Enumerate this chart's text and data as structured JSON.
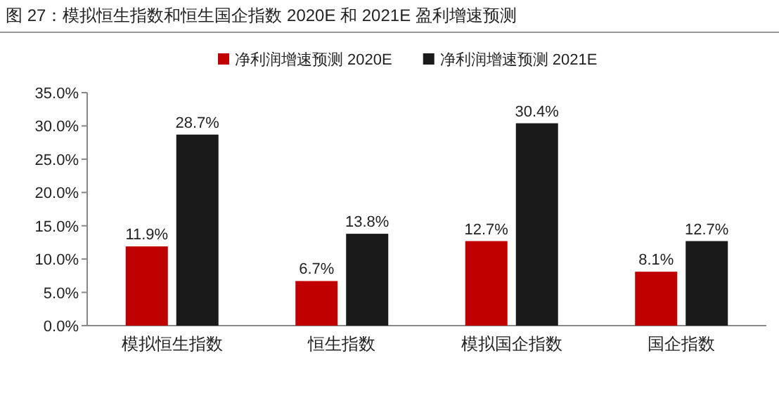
{
  "chart_data": {
    "type": "bar",
    "title": "图 27：模拟恒生指数和恒生国企指数 2020E 和 2021E 盈利增速预测",
    "categories": [
      "模拟恒生指数",
      "恒生指数",
      "模拟国企指数",
      "国企指数"
    ],
    "series": [
      {
        "name": "净利润增速预测 2020E",
        "color": "#c00000",
        "values": [
          11.9,
          6.7,
          12.7,
          8.1
        ],
        "value_labels": [
          "11.9%",
          "6.7%",
          "12.7%",
          "8.1%"
        ]
      },
      {
        "name": "净利润增速预测 2021E",
        "color": "#1a1a1a",
        "values": [
          28.7,
          13.8,
          30.4,
          12.7
        ],
        "value_labels": [
          "28.7%",
          "13.8%",
          "30.4%",
          "12.7%"
        ]
      }
    ],
    "ylim": [
      0,
      35
    ],
    "yticks": [
      {
        "value": 0,
        "label": "0.0%"
      },
      {
        "value": 5,
        "label": "5.0%"
      },
      {
        "value": 10,
        "label": "10.0%"
      },
      {
        "value": 15,
        "label": "15.0%"
      },
      {
        "value": 20,
        "label": "20.0%"
      },
      {
        "value": 25,
        "label": "25.0%"
      },
      {
        "value": 30,
        "label": "30.0%"
      },
      {
        "value": 35,
        "label": "35.0%"
      }
    ],
    "legend": "top",
    "grid": false
  }
}
